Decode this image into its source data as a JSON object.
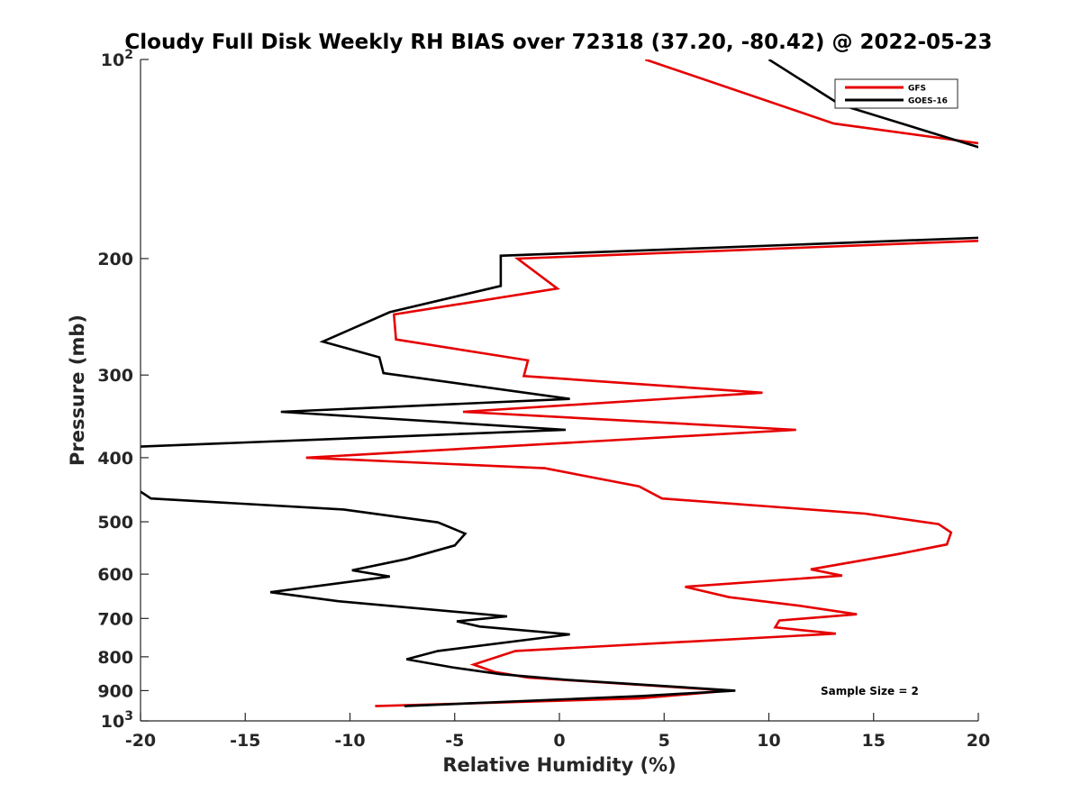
{
  "chart_data": {
    "type": "line",
    "title": "Cloudy Full Disk Weekly RH BIAS over 72318 (37.20, -80.42) @ 2022-05-23",
    "xlabel": "Relative Humidity (%)",
    "ylabel": "Pressure (mb)",
    "xlim": [
      -20,
      20
    ],
    "ylim": [
      100,
      1000
    ],
    "yscale": "log-reversed",
    "x_ticks": [
      -20,
      -15,
      -10,
      -5,
      0,
      5,
      10,
      15,
      20
    ],
    "x_tick_labels": [
      "-20",
      "-15",
      "-10",
      "-5",
      "0",
      "5",
      "10",
      "15",
      "20"
    ],
    "y_ticks": [
      {
        "value": 100,
        "label": "10",
        "sup": "2"
      },
      {
        "value": 200,
        "label": "200"
      },
      {
        "value": 300,
        "label": "300"
      },
      {
        "value": 400,
        "label": "400"
      },
      {
        "value": 500,
        "label": "500"
      },
      {
        "value": 600,
        "label": "600"
      },
      {
        "value": 700,
        "label": "700"
      },
      {
        "value": 800,
        "label": "800"
      },
      {
        "value": 900,
        "label": "900"
      },
      {
        "value": 1000,
        "label": "10",
        "sup": "3"
      }
    ],
    "legend_position": "top-right",
    "annotation": "Sample Size = 2",
    "series": [
      {
        "name": "GFS",
        "color": "#e60000",
        "points": [
          [
            4.1,
            100
          ],
          [
            13.1,
            125
          ],
          [
            20.1,
            134
          ],
          [
            20.1,
            188
          ],
          [
            -2.0,
            200
          ],
          [
            -0.1,
            222
          ],
          [
            -7.9,
            243
          ],
          [
            -7.8,
            265
          ],
          [
            -1.5,
            285
          ],
          [
            -1.7,
            301
          ],
          [
            9.7,
            319
          ],
          [
            -4.6,
            341
          ],
          [
            11.3,
            363
          ],
          [
            -12.1,
            400
          ],
          [
            -0.7,
            415
          ],
          [
            3.8,
            442
          ],
          [
            4.9,
            461
          ],
          [
            14.6,
            486
          ],
          [
            18.1,
            504
          ],
          [
            18.7,
            519
          ],
          [
            18.5,
            541
          ],
          [
            16.1,
            560
          ],
          [
            12.0,
            590
          ],
          [
            13.5,
            603
          ],
          [
            6.0,
            627
          ],
          [
            8.1,
            650
          ],
          [
            11.5,
            670
          ],
          [
            14.2,
            690
          ],
          [
            10.5,
            705
          ],
          [
            10.3,
            722
          ],
          [
            13.2,
            738
          ],
          [
            -2.1,
            784
          ],
          [
            -4.1,
            822
          ],
          [
            -3.1,
            843
          ],
          [
            -1.5,
            860
          ],
          [
            8.1,
            900
          ],
          [
            3.8,
            925
          ],
          [
            -8.8,
            950
          ]
        ]
      },
      {
        "name": "GOES-16",
        "color": "#000000",
        "points": [
          [
            10.0,
            100
          ],
          [
            13.4,
            117
          ],
          [
            20.1,
            136
          ],
          [
            20.1,
            186
          ],
          [
            -2.8,
            198
          ],
          [
            -2.8,
            220
          ],
          [
            -8.1,
            241
          ],
          [
            -11.3,
            267
          ],
          [
            -8.6,
            282
          ],
          [
            -8.4,
            298
          ],
          [
            0.5,
            326
          ],
          [
            -13.3,
            341
          ],
          [
            0.3,
            363
          ],
          [
            -20.1,
            385
          ],
          [
            -20.1,
            448
          ],
          [
            -19.5,
            461
          ],
          [
            -10.3,
            479
          ],
          [
            -5.8,
            501
          ],
          [
            -4.5,
            521
          ],
          [
            -5.0,
            543
          ],
          [
            -7.3,
            569
          ],
          [
            -9.9,
            592
          ],
          [
            -8.1,
            605
          ],
          [
            -13.8,
            639
          ],
          [
            -10.6,
            659
          ],
          [
            -2.5,
            695
          ],
          [
            -4.9,
            707
          ],
          [
            -3.8,
            720
          ],
          [
            0.5,
            740
          ],
          [
            -5.8,
            784
          ],
          [
            -7.3,
            807
          ],
          [
            -5.1,
            830
          ],
          [
            -2.8,
            850
          ],
          [
            0.4,
            867
          ],
          [
            8.4,
            900
          ],
          [
            3.9,
            917
          ],
          [
            -7.4,
            950
          ]
        ]
      }
    ]
  }
}
